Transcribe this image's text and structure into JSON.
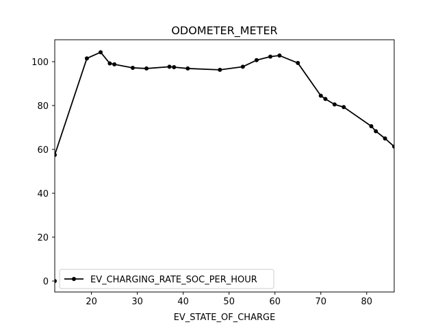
{
  "chart_data": {
    "type": "line",
    "title": "ODOMETER_METER",
    "xlabel": "EV_STATE_OF_CHARGE",
    "ylabel": "",
    "xlim": [
      12,
      86
    ],
    "ylim": [
      -5,
      110
    ],
    "xticks": [
      20,
      30,
      40,
      50,
      60,
      70,
      80
    ],
    "yticks": [
      0,
      20,
      40,
      60,
      80,
      100
    ],
    "grid": false,
    "legend_position": "lower-left",
    "series": [
      {
        "name": "EV_CHARGING_RATE_SOC_PER_HOUR",
        "color": "#000000",
        "marker": "circle",
        "x": [
          12,
          19,
          22,
          24,
          25,
          29,
          32,
          37,
          38,
          41,
          48,
          53,
          56,
          59,
          61,
          65,
          70,
          71,
          73,
          75,
          81,
          82,
          84,
          86
        ],
        "y": [
          57.5,
          101.5,
          104.3,
          99.2,
          98.8,
          97.2,
          96.9,
          97.7,
          97.5,
          96.9,
          96.3,
          97.7,
          100.7,
          102.3,
          102.8,
          99.4,
          84.5,
          83.0,
          80.5,
          79.3,
          70.6,
          68.3,
          65.0,
          61.3
        ]
      }
    ],
    "extra_points": [
      {
        "x": 12,
        "y": 0
      }
    ]
  }
}
